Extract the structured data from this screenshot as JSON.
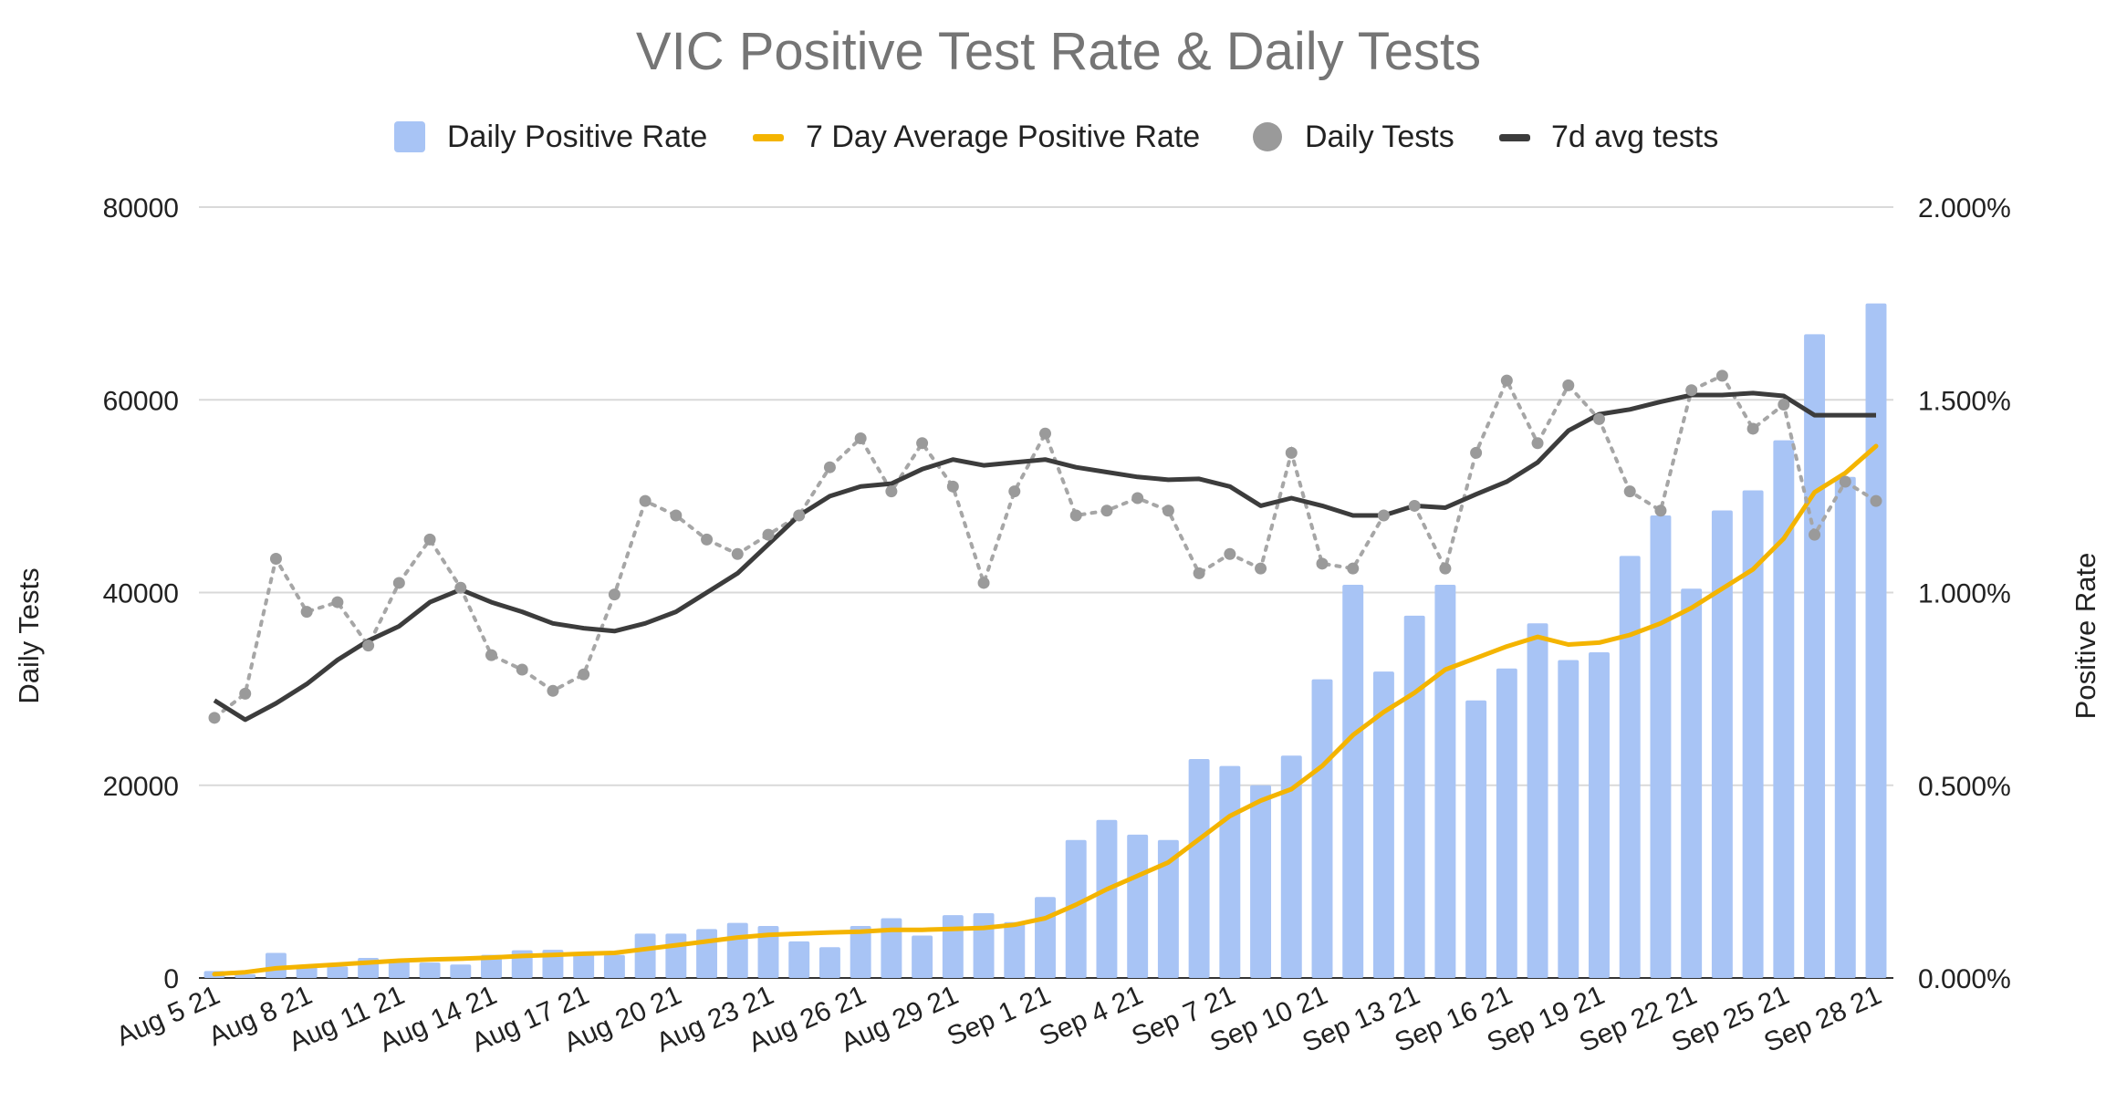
{
  "chart_data": {
    "type": "combo",
    "title": "VIC Positive Test Rate & Daily Tests",
    "left_axis": {
      "label": "Daily Tests",
      "min": 0,
      "max": 80000,
      "ticks": [
        0,
        20000,
        40000,
        60000,
        80000
      ]
    },
    "right_axis": {
      "label": "Positive Rate",
      "min": 0,
      "max": 2.0,
      "tick_labels": [
        "0.000%",
        "0.500%",
        "1.000%",
        "1.500%",
        "2.000%"
      ]
    },
    "gridlines": true,
    "legend_position": "top",
    "x_tick_labels": [
      "Aug 5 21",
      "Aug 8 21",
      "Aug 11 21",
      "Aug 14 21",
      "Aug 17 21",
      "Aug 20 21",
      "Aug 23 21",
      "Aug 26 21",
      "Aug 29 21",
      "Sep 1 21",
      "Sep 4 21",
      "Sep 7 21",
      "Sep 10 21",
      "Sep 13 21",
      "Sep 16 21",
      "Sep 19 21",
      "Sep 22 21",
      "Sep 25 21",
      "Sep 28 21"
    ],
    "dates": [
      "Aug 5 21",
      "Aug 6 21",
      "Aug 7 21",
      "Aug 8 21",
      "Aug 9 21",
      "Aug 10 21",
      "Aug 11 21",
      "Aug 12 21",
      "Aug 13 21",
      "Aug 14 21",
      "Aug 15 21",
      "Aug 16 21",
      "Aug 17 21",
      "Aug 18 21",
      "Aug 19 21",
      "Aug 20 21",
      "Aug 21 21",
      "Aug 22 21",
      "Aug 23 21",
      "Aug 24 21",
      "Aug 25 21",
      "Aug 26 21",
      "Aug 27 21",
      "Aug 28 21",
      "Aug 29 21",
      "Aug 30 21",
      "Aug 31 21",
      "Sep 1 21",
      "Sep 2 21",
      "Sep 3 21",
      "Sep 4 21",
      "Sep 5 21",
      "Sep 6 21",
      "Sep 7 21",
      "Sep 8 21",
      "Sep 9 21",
      "Sep 10 21",
      "Sep 11 21",
      "Sep 12 21",
      "Sep 13 21",
      "Sep 14 21",
      "Sep 15 21",
      "Sep 16 21",
      "Sep 17 21",
      "Sep 18 21",
      "Sep 19 21",
      "Sep 20 21",
      "Sep 21 21",
      "Sep 22 21",
      "Sep 23 21",
      "Sep 24 21",
      "Sep 25 21",
      "Sep 26 21",
      "Sep 27 21",
      "Sep 28 21"
    ],
    "series": [
      {
        "name": "Daily Positive Rate",
        "kind": "bar",
        "axis": "right",
        "color": "#a8c4f5",
        "values": [
          0.018,
          0.01,
          0.065,
          0.03,
          0.03,
          0.052,
          0.045,
          0.04,
          0.035,
          0.06,
          0.072,
          0.073,
          0.065,
          0.06,
          0.115,
          0.115,
          0.127,
          0.143,
          0.135,
          0.095,
          0.08,
          0.135,
          0.155,
          0.11,
          0.163,
          0.168,
          0.145,
          0.21,
          0.358,
          0.41,
          0.372,
          0.358,
          0.568,
          0.55,
          0.5,
          0.577,
          0.775,
          1.02,
          0.795,
          0.94,
          1.02,
          0.72,
          0.803,
          0.92,
          0.825,
          0.845,
          1.095,
          1.2,
          1.01,
          1.213,
          1.265,
          1.395,
          1.67,
          1.3,
          1.75
        ]
      },
      {
        "name": "7 Day Average Positive Rate",
        "kind": "line",
        "axis": "right",
        "color": "#f4b400",
        "values": [
          0.01,
          0.015,
          0.025,
          0.03,
          0.035,
          0.04,
          0.045,
          0.048,
          0.05,
          0.053,
          0.057,
          0.06,
          0.063,
          0.065,
          0.075,
          0.085,
          0.095,
          0.105,
          0.112,
          0.115,
          0.118,
          0.12,
          0.125,
          0.125,
          0.127,
          0.13,
          0.138,
          0.155,
          0.19,
          0.23,
          0.265,
          0.3,
          0.36,
          0.42,
          0.46,
          0.49,
          0.55,
          0.63,
          0.69,
          0.74,
          0.8,
          0.83,
          0.86,
          0.885,
          0.865,
          0.87,
          0.89,
          0.92,
          0.96,
          1.01,
          1.06,
          1.14,
          1.26,
          1.31,
          1.38
        ]
      },
      {
        "name": "Daily Tests",
        "kind": "scatter-dotted",
        "axis": "left",
        "color": "#9a9a9a",
        "values": [
          27000,
          29500,
          43500,
          38000,
          39000,
          34500,
          41000,
          45500,
          40500,
          33500,
          32000,
          29800,
          31500,
          39800,
          49500,
          48000,
          45500,
          44000,
          46000,
          48000,
          53000,
          56000,
          50500,
          55500,
          51000,
          41000,
          50500,
          56500,
          48000,
          48500,
          49800,
          48500,
          42000,
          44000,
          42500,
          54500,
          43000,
          42500,
          48000,
          49000,
          42500,
          54500,
          62000,
          55500,
          61500,
          58000,
          50500,
          48500,
          61000,
          62500,
          57000,
          59500,
          46000,
          51500,
          49500
        ]
      },
      {
        "name": "7d avg tests",
        "kind": "line",
        "axis": "left",
        "color": "#3c3c3c",
        "values": [
          28800,
          26800,
          28500,
          30500,
          33000,
          35000,
          36500,
          39000,
          40300,
          39000,
          38000,
          36800,
          36300,
          36000,
          36800,
          38000,
          40000,
          42000,
          45000,
          48000,
          50000,
          51000,
          51300,
          52800,
          53800,
          53200,
          53500,
          53800,
          53000,
          52500,
          52000,
          51700,
          51800,
          51000,
          49000,
          49800,
          49000,
          48000,
          48000,
          49000,
          48800,
          50200,
          51500,
          53500,
          56800,
          58500,
          59000,
          59800,
          60500,
          60500,
          60700,
          60400,
          58400,
          58400,
          58400
        ]
      }
    ]
  }
}
